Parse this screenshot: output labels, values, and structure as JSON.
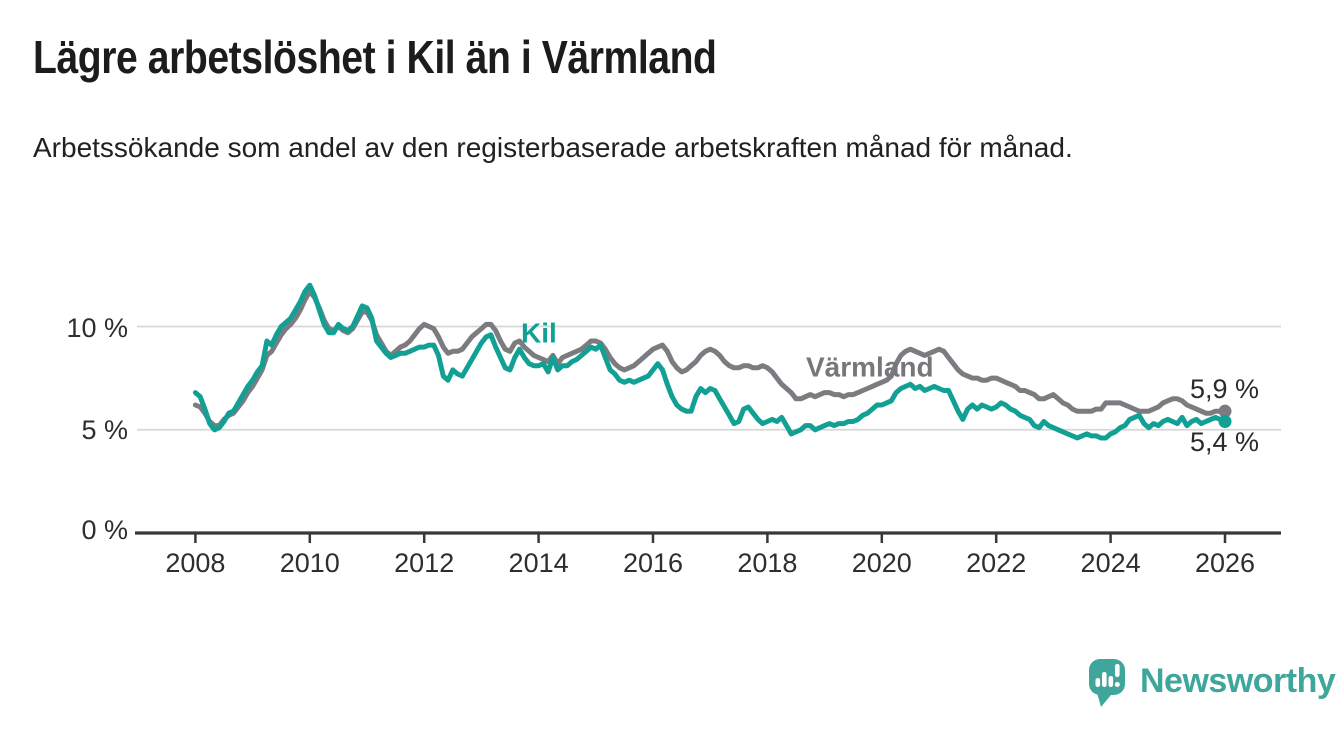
{
  "title": "Lägre arbetslöshet i Kil än i Värmland",
  "subtitle": "Arbetssökande som andel av den registerbaserade arbetskraften månad för månad.",
  "branding": {
    "logo_text": "Newsworthy",
    "logo_color": "#3FA69C",
    "logo_icon": "speech-bubble-bar-chart"
  },
  "colors": {
    "kil_line": "#12A095",
    "varmland_line": "#7b7b80",
    "axis": "#38383a",
    "gridline": "#d7d7d7",
    "text_dark": "#1c1c1a"
  },
  "chart_data": {
    "type": "line",
    "title": "Lägre arbetslöshet i Kil än i Värmland",
    "subtitle": "Arbetssökande som andel av den registerbaserade arbetskraften månad för månad.",
    "unit": "%",
    "x_start_year": 2008,
    "x_step_months": 1,
    "x_end_year": 2026,
    "x_ticks": [
      2008,
      2010,
      2012,
      2014,
      2016,
      2018,
      2020,
      2022,
      2024,
      2026
    ],
    "y_ticks": [
      {
        "value": 0,
        "label": "0 %"
      },
      {
        "value": 5,
        "label": "5 %"
      },
      {
        "value": 10,
        "label": "10 %"
      }
    ],
    "ylim": [
      0,
      13
    ],
    "grid": "horizontal-only",
    "legend": "inline-series-labels",
    "series": [
      {
        "name": "Kil",
        "color": "#12A095",
        "end_value": 5.4,
        "end_label": "5,4 %",
        "values": [
          6.8,
          6.6,
          6.0,
          5.3,
          5.0,
          5.1,
          5.4,
          5.8,
          5.9,
          6.3,
          6.7,
          7.1,
          7.4,
          7.8,
          8.1,
          9.3,
          9.1,
          9.6,
          10.0,
          10.2,
          10.4,
          10.8,
          11.2,
          11.7,
          12.0,
          11.5,
          10.8,
          10.1,
          9.7,
          9.7,
          10.1,
          9.9,
          9.8,
          10.0,
          10.5,
          11.0,
          10.9,
          10.4,
          9.3,
          9.0,
          8.7,
          8.5,
          8.6,
          8.7,
          8.7,
          8.8,
          8.9,
          9.0,
          9.0,
          9.1,
          9.1,
          8.6,
          7.6,
          7.4,
          7.9,
          7.7,
          7.6,
          8.0,
          8.4,
          8.8,
          9.2,
          9.5,
          9.6,
          9.0,
          8.5,
          8.0,
          7.9,
          8.5,
          8.9,
          8.5,
          8.2,
          8.1,
          8.1,
          8.2,
          7.8,
          8.5,
          7.9,
          8.1,
          8.1,
          8.3,
          8.4,
          8.6,
          8.8,
          9.0,
          8.9,
          9.1,
          8.5,
          7.9,
          7.7,
          7.4,
          7.3,
          7.4,
          7.3,
          7.4,
          7.5,
          7.6,
          7.9,
          8.2,
          7.9,
          7.2,
          6.6,
          6.2,
          6.0,
          5.9,
          5.9,
          6.6,
          7.0,
          6.8,
          7.0,
          6.9,
          6.5,
          6.1,
          5.7,
          5.3,
          5.4,
          6.0,
          6.1,
          5.8,
          5.5,
          5.3,
          5.4,
          5.5,
          5.4,
          5.6,
          5.2,
          4.8,
          4.9,
          5.0,
          5.2,
          5.2,
          5.0,
          5.1,
          5.2,
          5.3,
          5.2,
          5.3,
          5.3,
          5.4,
          5.4,
          5.5,
          5.7,
          5.8,
          6.0,
          6.2,
          6.2,
          6.3,
          6.4,
          6.8,
          7.0,
          7.1,
          7.2,
          7.0,
          7.1,
          6.9,
          7.0,
          7.1,
          7.0,
          6.9,
          6.9,
          6.4,
          5.9,
          5.5,
          6.0,
          6.2,
          6.0,
          6.2,
          6.1,
          6.0,
          6.1,
          6.3,
          6.2,
          6.0,
          5.9,
          5.7,
          5.6,
          5.5,
          5.2,
          5.1,
          5.4,
          5.2,
          5.1,
          5.0,
          4.9,
          4.8,
          4.7,
          4.6,
          4.7,
          4.8,
          4.7,
          4.7,
          4.6,
          4.6,
          4.8,
          4.9,
          5.1,
          5.2,
          5.5,
          5.6,
          5.7,
          5.3,
          5.1,
          5.3,
          5.2,
          5.4,
          5.5,
          5.4,
          5.3,
          5.6,
          5.2,
          5.4,
          5.5,
          5.3,
          5.4,
          5.5,
          5.6,
          5.5,
          5.4
        ]
      },
      {
        "name": "Värmland",
        "color": "#7b7b80",
        "end_value": 5.9,
        "end_label": "5,9 %",
        "values": [
          6.2,
          6.1,
          5.8,
          5.4,
          5.2,
          5.2,
          5.5,
          5.7,
          5.8,
          6.1,
          6.4,
          6.8,
          7.1,
          7.5,
          7.9,
          8.6,
          8.8,
          9.2,
          9.6,
          9.9,
          10.1,
          10.4,
          10.8,
          11.3,
          11.7,
          11.4,
          10.9,
          10.3,
          9.9,
          9.8,
          10.0,
          9.8,
          9.7,
          9.9,
          10.3,
          10.7,
          10.7,
          10.3,
          9.6,
          9.2,
          8.8,
          8.6,
          8.8,
          9.0,
          9.1,
          9.3,
          9.6,
          9.9,
          10.1,
          10.0,
          9.9,
          9.5,
          9.0,
          8.7,
          8.8,
          8.8,
          8.9,
          9.2,
          9.5,
          9.7,
          9.9,
          10.1,
          10.1,
          9.8,
          9.3,
          8.9,
          8.8,
          9.2,
          9.3,
          9.0,
          8.8,
          8.6,
          8.5,
          8.4,
          8.3,
          8.6,
          8.2,
          8.5,
          8.6,
          8.7,
          8.8,
          8.9,
          9.1,
          9.3,
          9.3,
          9.2,
          8.9,
          8.5,
          8.2,
          8.0,
          7.9,
          8.0,
          8.1,
          8.3,
          8.5,
          8.7,
          8.9,
          9.0,
          9.1,
          8.8,
          8.3,
          8.0,
          7.8,
          7.9,
          8.1,
          8.3,
          8.6,
          8.8,
          8.9,
          8.8,
          8.6,
          8.3,
          8.1,
          8.0,
          8.0,
          8.1,
          8.1,
          8.0,
          8.0,
          8.1,
          8.0,
          7.8,
          7.5,
          7.2,
          7.0,
          6.8,
          6.5,
          6.5,
          6.6,
          6.7,
          6.6,
          6.7,
          6.8,
          6.8,
          6.7,
          6.7,
          6.6,
          6.7,
          6.7,
          6.8,
          6.9,
          7.0,
          7.1,
          7.2,
          7.3,
          7.4,
          7.6,
          8.2,
          8.6,
          8.8,
          8.9,
          8.8,
          8.7,
          8.6,
          8.7,
          8.8,
          8.9,
          8.8,
          8.5,
          8.2,
          7.9,
          7.7,
          7.6,
          7.5,
          7.5,
          7.4,
          7.4,
          7.5,
          7.5,
          7.4,
          7.3,
          7.2,
          7.1,
          6.9,
          6.9,
          6.8,
          6.7,
          6.5,
          6.5,
          6.6,
          6.7,
          6.5,
          6.3,
          6.2,
          6.0,
          5.9,
          5.9,
          5.9,
          5.9,
          6.0,
          6.0,
          6.3,
          6.3,
          6.3,
          6.3,
          6.2,
          6.1,
          6.0,
          5.9,
          5.9,
          5.9,
          6.0,
          6.1,
          6.3,
          6.4,
          6.5,
          6.5,
          6.4,
          6.2,
          6.1,
          6.0,
          5.9,
          5.8,
          5.8,
          5.9,
          5.9,
          5.9
        ]
      }
    ]
  }
}
